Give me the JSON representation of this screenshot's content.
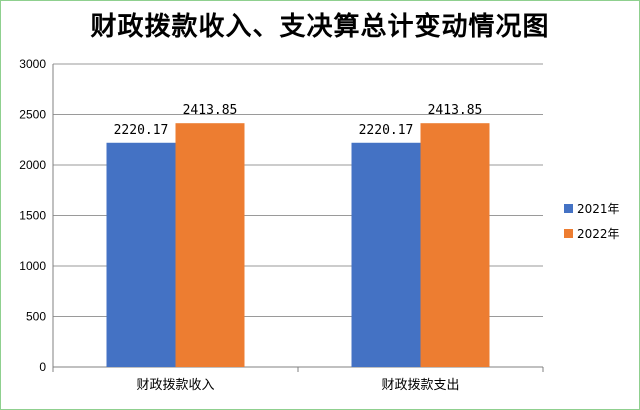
{
  "chart_data": {
    "type": "bar",
    "title": "财政拨款收入、支决算总计变动情况图",
    "categories": [
      "财政拨款收入",
      "财政拨款支出"
    ],
    "series": [
      {
        "name": "2021年",
        "values": [
          2220.17,
          2220.17
        ],
        "color": "#4472C4"
      },
      {
        "name": "2022年",
        "values": [
          2413.85,
          2413.85
        ],
        "color": "#ED7D31"
      }
    ],
    "data_labels": [
      [
        "2220.17",
        "2220.17"
      ],
      [
        "2413.85",
        "2413.85"
      ]
    ],
    "ylim": [
      0,
      3000
    ],
    "yticks": [
      "0",
      "500",
      "1000",
      "1500",
      "2000",
      "2500",
      "3000"
    ],
    "grid": true,
    "legend_position": "right"
  }
}
